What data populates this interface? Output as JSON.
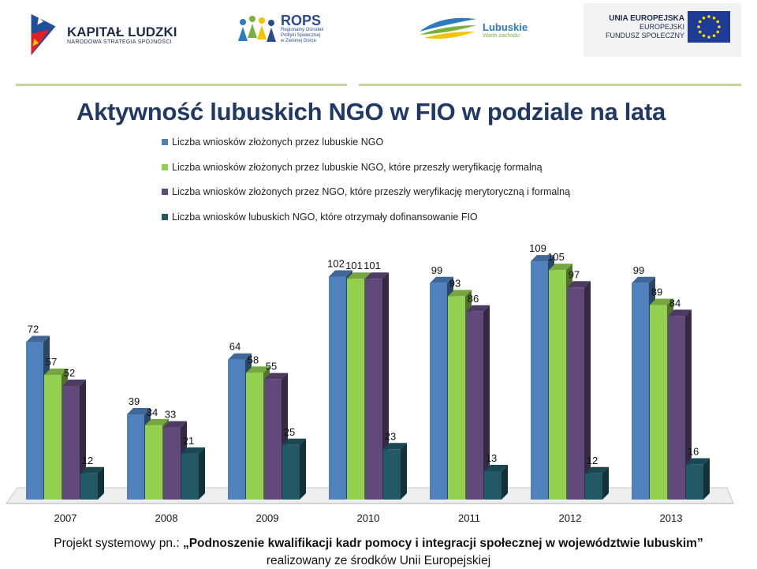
{
  "logos": {
    "kapital_ludzki": {
      "line1": "KAPITAŁ LUDZKI",
      "line2": "NARODOWA STRATEGIA SPÓJNOŚCI"
    },
    "rops": {
      "name": "ROPS",
      "sub1": "Regionalny Ośrodek",
      "sub2": "Polityki Społecznej",
      "sub3": "w Zielonej Górze"
    },
    "lubuskie": {
      "name": "Lubuskie",
      "slogan": "Warte zachodu"
    },
    "eu": {
      "line1": "UNIA EUROPEJSKA",
      "line2": "EUROPEJSKI",
      "line3": "FUNDUSZ SPOŁECZNY"
    }
  },
  "colors": {
    "title": "#1f3864",
    "divider": "#c3d69b",
    "series": [
      "#4f81bd",
      "#92d050",
      "#604a7b",
      "#215967"
    ]
  },
  "footer": {
    "prefix": "Projekt systemowy pn.: ",
    "project": "„Podnoszenie kwalifikacji kadr pomocy i integracji społecznej w województwie lubuskim”",
    "line2": "realizowany ze środków Unii Europejskiej"
  },
  "chart_data": {
    "type": "bar",
    "title": "Aktywność lubuskich NGO w FIO w podziale na lata",
    "categories": [
      "2007",
      "2008",
      "2009",
      "2010",
      "2011",
      "2012",
      "2013"
    ],
    "legend_position": "top",
    "grid": false,
    "ylim": [
      0,
      115
    ],
    "series": [
      {
        "name": "Liczba wniosków złożonych przez lubuskie NGO",
        "values": [
          72,
          39,
          64,
          102,
          99,
          109,
          99
        ]
      },
      {
        "name": "Liczba wniosków złożonych przez lubuskie NGO, które przeszły weryfikację formalną",
        "values": [
          57,
          34,
          58,
          101,
          93,
          105,
          89
        ]
      },
      {
        "name": "Liczba wniosków złożonych przez NGO, które przeszły weryfikację merytoryczną i formalną",
        "values": [
          52,
          33,
          55,
          101,
          86,
          97,
          84
        ]
      },
      {
        "name": "Liczba wniosków lubuskich NGO, które otrzymały dofinansowanie FIO",
        "values": [
          12,
          21,
          25,
          23,
          13,
          12,
          16
        ]
      }
    ]
  }
}
